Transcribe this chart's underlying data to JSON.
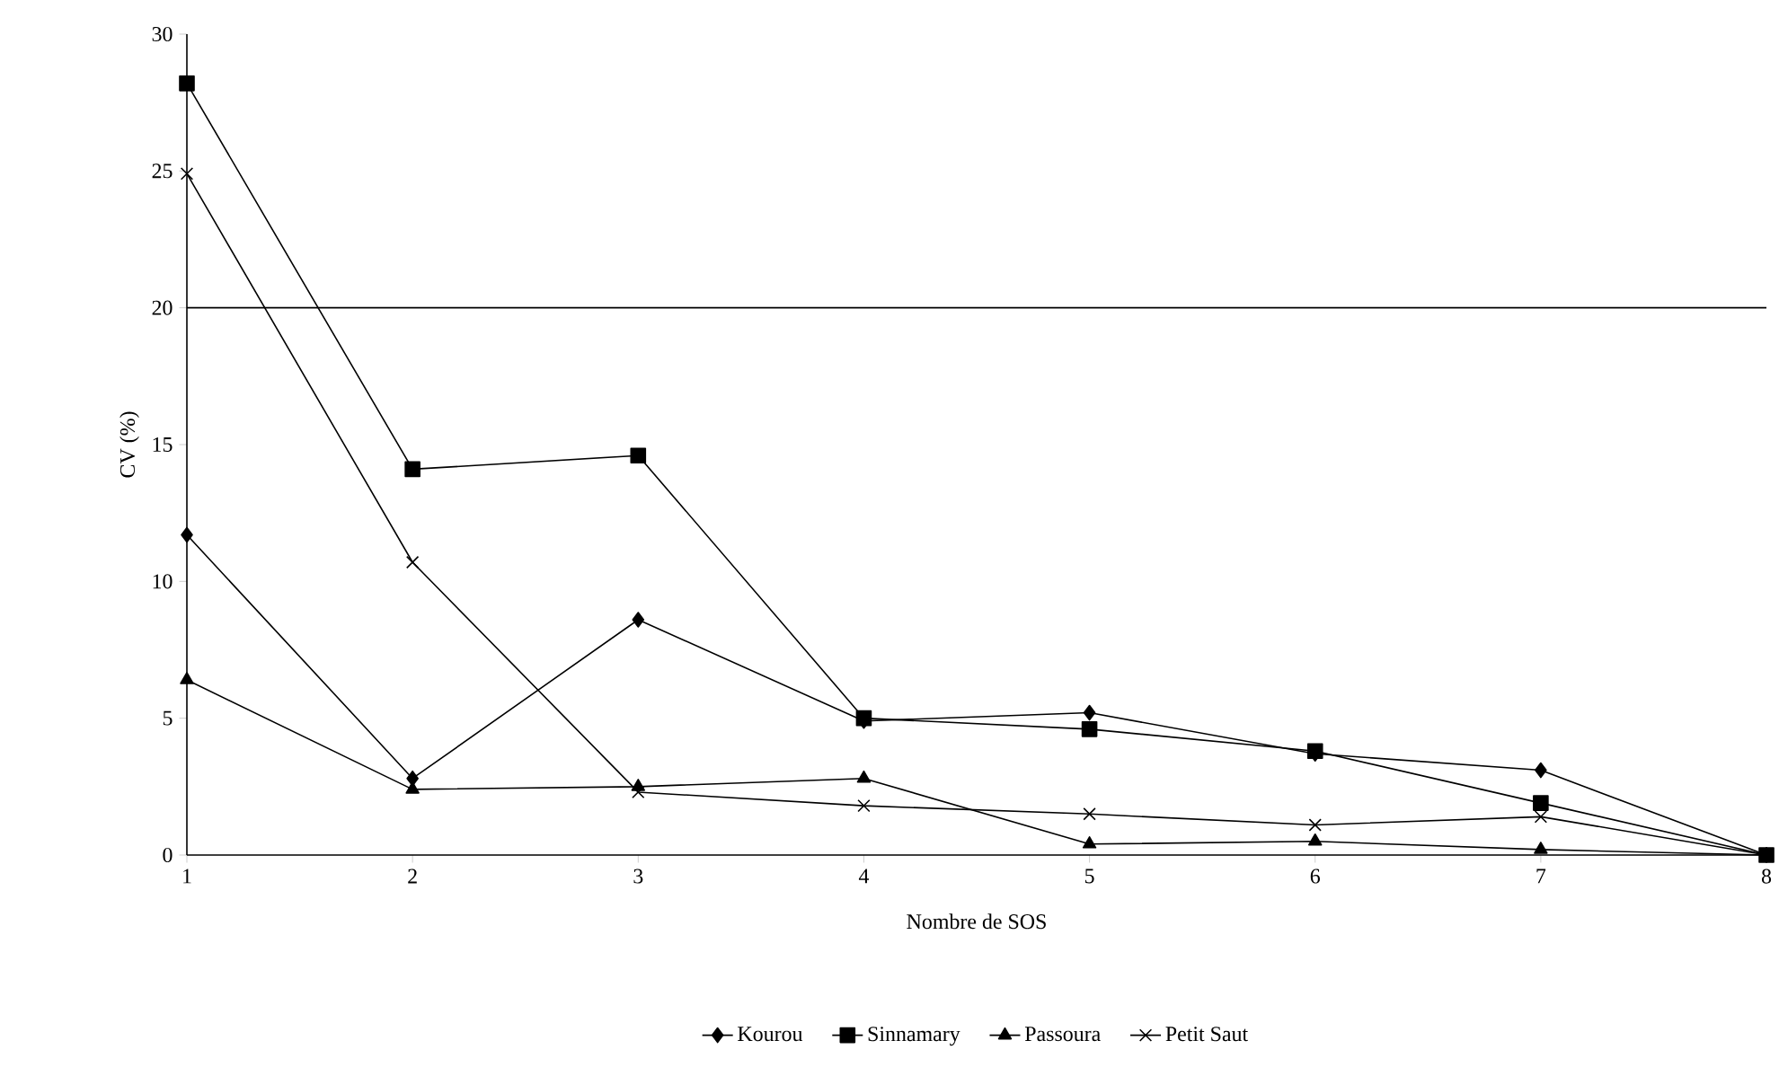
{
  "chart_data": {
    "type": "line",
    "xlabel": "Nombre de SOS",
    "ylabel": "CV (%)",
    "x": [
      1,
      2,
      3,
      4,
      5,
      6,
      7,
      8
    ],
    "xlim": [
      1,
      8
    ],
    "xticks": [
      1,
      2,
      3,
      4,
      5,
      6,
      7,
      8
    ],
    "ylim": [
      0,
      30
    ],
    "yticks": [
      0,
      5,
      10,
      15,
      20,
      25,
      30
    ],
    "grid": false,
    "legend": "bottom",
    "series": [
      {
        "name": "Kourou",
        "color": "#000000",
        "marker": "diamond",
        "values": [
          11.7,
          2.8,
          8.6,
          4.9,
          5.2,
          3.7,
          3.1,
          0
        ]
      },
      {
        "name": "Sinnamary",
        "color": "#000000",
        "marker": "square",
        "values": [
          28.2,
          14.1,
          14.6,
          5.0,
          4.6,
          3.8,
          1.9,
          0
        ]
      },
      {
        "name": "Passoura",
        "color": "#000000",
        "marker": "triangle",
        "values": [
          6.4,
          2.4,
          2.5,
          2.8,
          0.4,
          0.5,
          0.2,
          0
        ]
      },
      {
        "name": "Petit Saut",
        "color": "#000000",
        "marker": "cross",
        "values": [
          24.9,
          10.7,
          2.3,
          1.8,
          1.5,
          1.1,
          1.4,
          0
        ]
      }
    ],
    "ref_lines": [
      {
        "axis": "y",
        "value": 20,
        "color": "#000000"
      }
    ]
  }
}
